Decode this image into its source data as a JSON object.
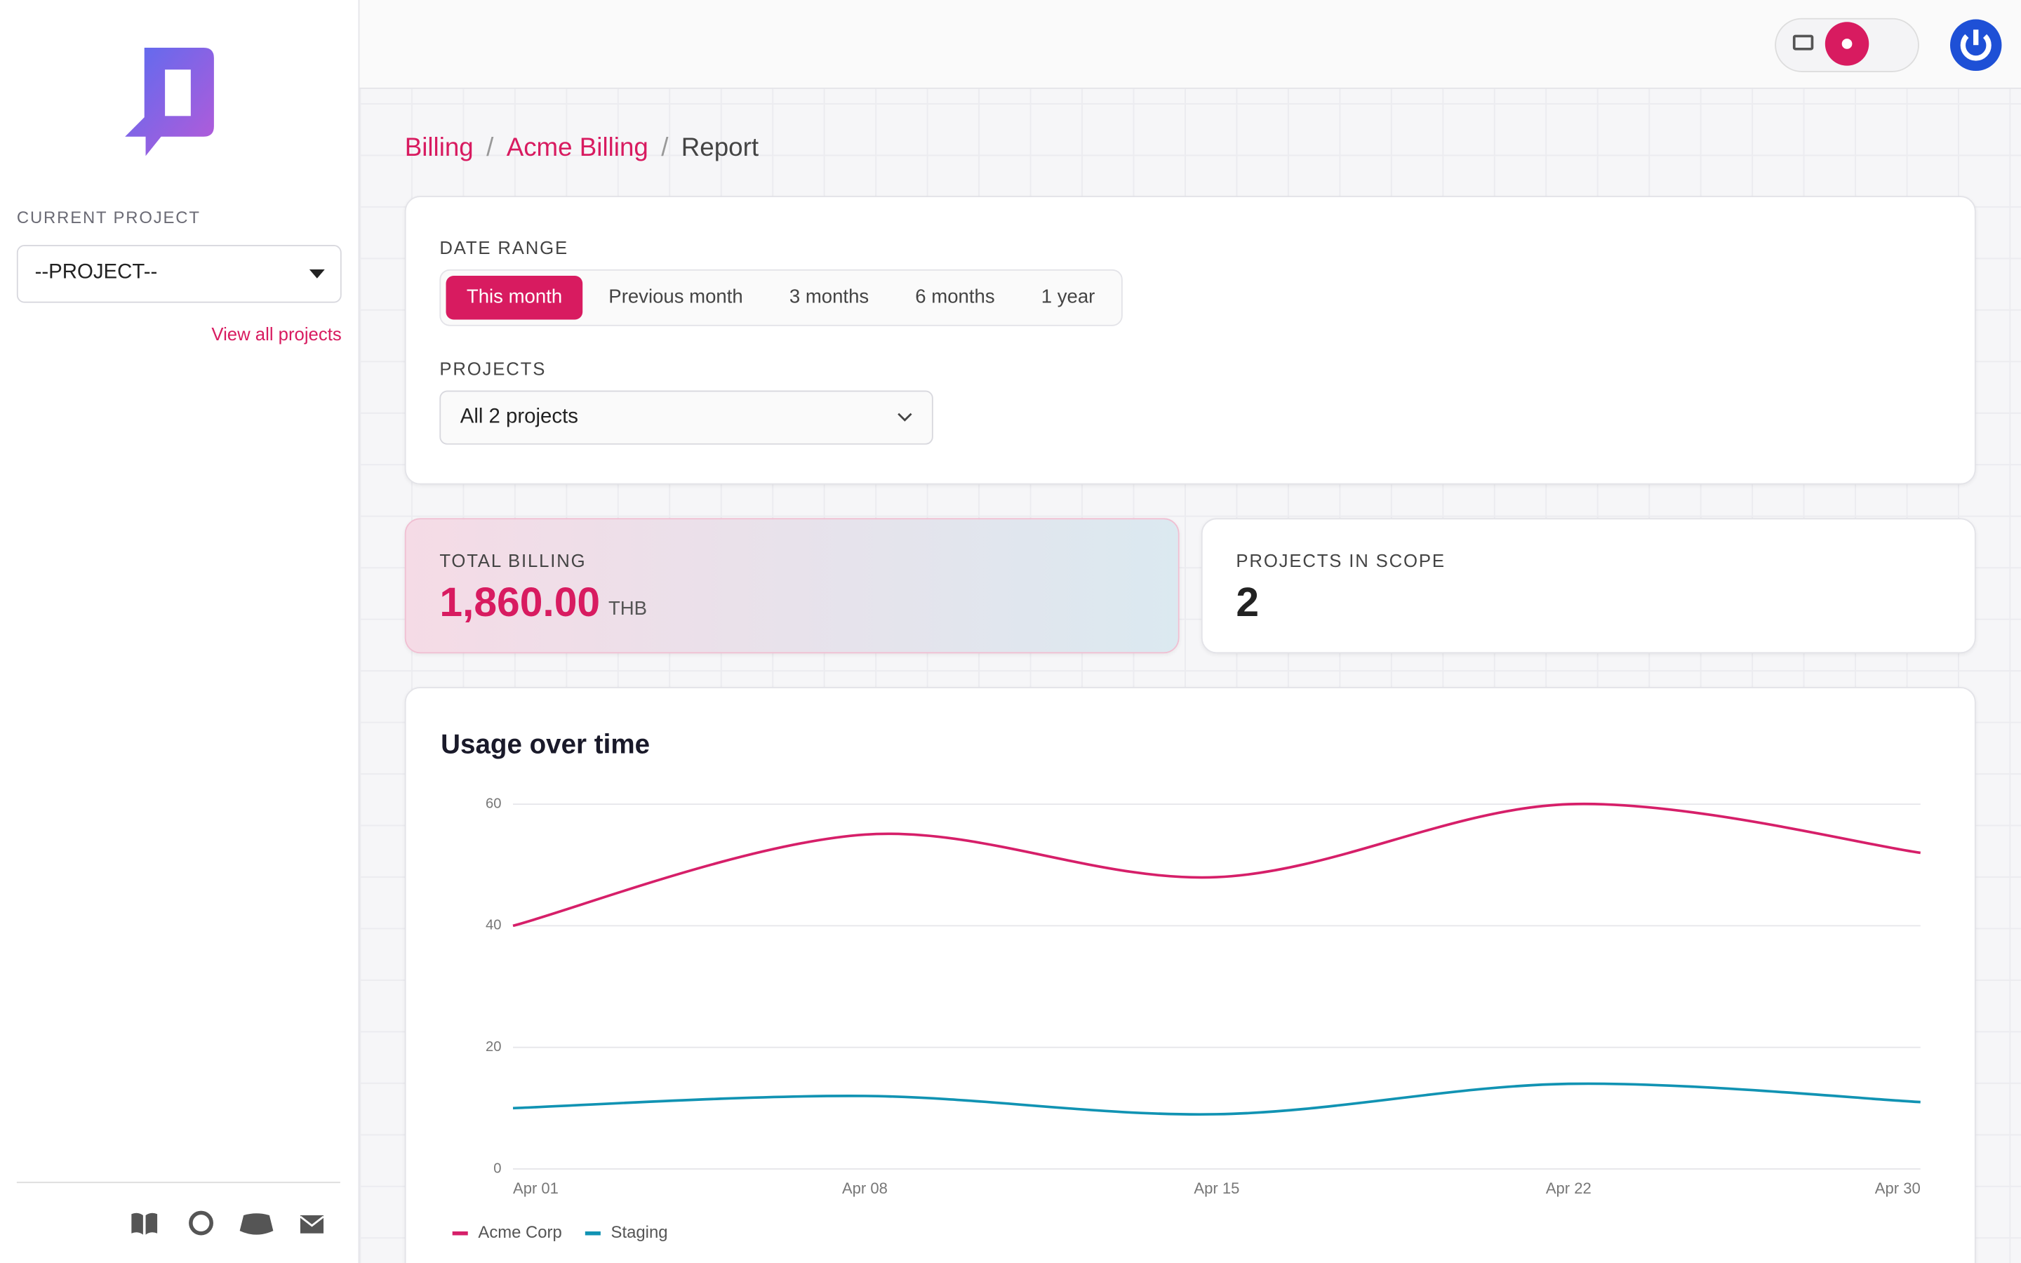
{
  "sidebar": {
    "current_project_label": "CURRENT PROJECT",
    "project_select": "--PROJECT--",
    "view_all": "View all projects"
  },
  "breadcrumbs": [
    "Billing",
    "Acme Billing",
    "Report"
  ],
  "filters": {
    "date_range_label": "DATE RANGE",
    "date_range_options": [
      "This month",
      "Previous month",
      "3 months",
      "6 months",
      "1 year"
    ],
    "projects_label": "PROJECTS",
    "projects_select": "All 2 projects"
  },
  "stats": [
    {
      "label": "TOTAL BILLING",
      "value": "1,860.00",
      "unit": "THB"
    },
    {
      "label": "PROJECTS IN SCOPE",
      "value": 2
    }
  ],
  "chart_data": {
    "type": "line",
    "title": "Usage over time",
    "categories": [
      "Apr 01",
      "Apr 08",
      "Apr 15",
      "Apr 22",
      "Apr 30"
    ],
    "series": [
      {
        "name": "Acme Corp",
        "color": "#d61f69",
        "values": [
          40,
          55,
          48,
          60,
          52
        ]
      },
      {
        "name": "Staging",
        "color": "#1193b3",
        "values": [
          10,
          12,
          9,
          14,
          11
        ]
      }
    ],
    "ylim": [
      0,
      60
    ],
    "yticks": [
      0,
      20,
      40,
      60
    ],
    "grid": true,
    "legend": "bottom-left"
  }
}
